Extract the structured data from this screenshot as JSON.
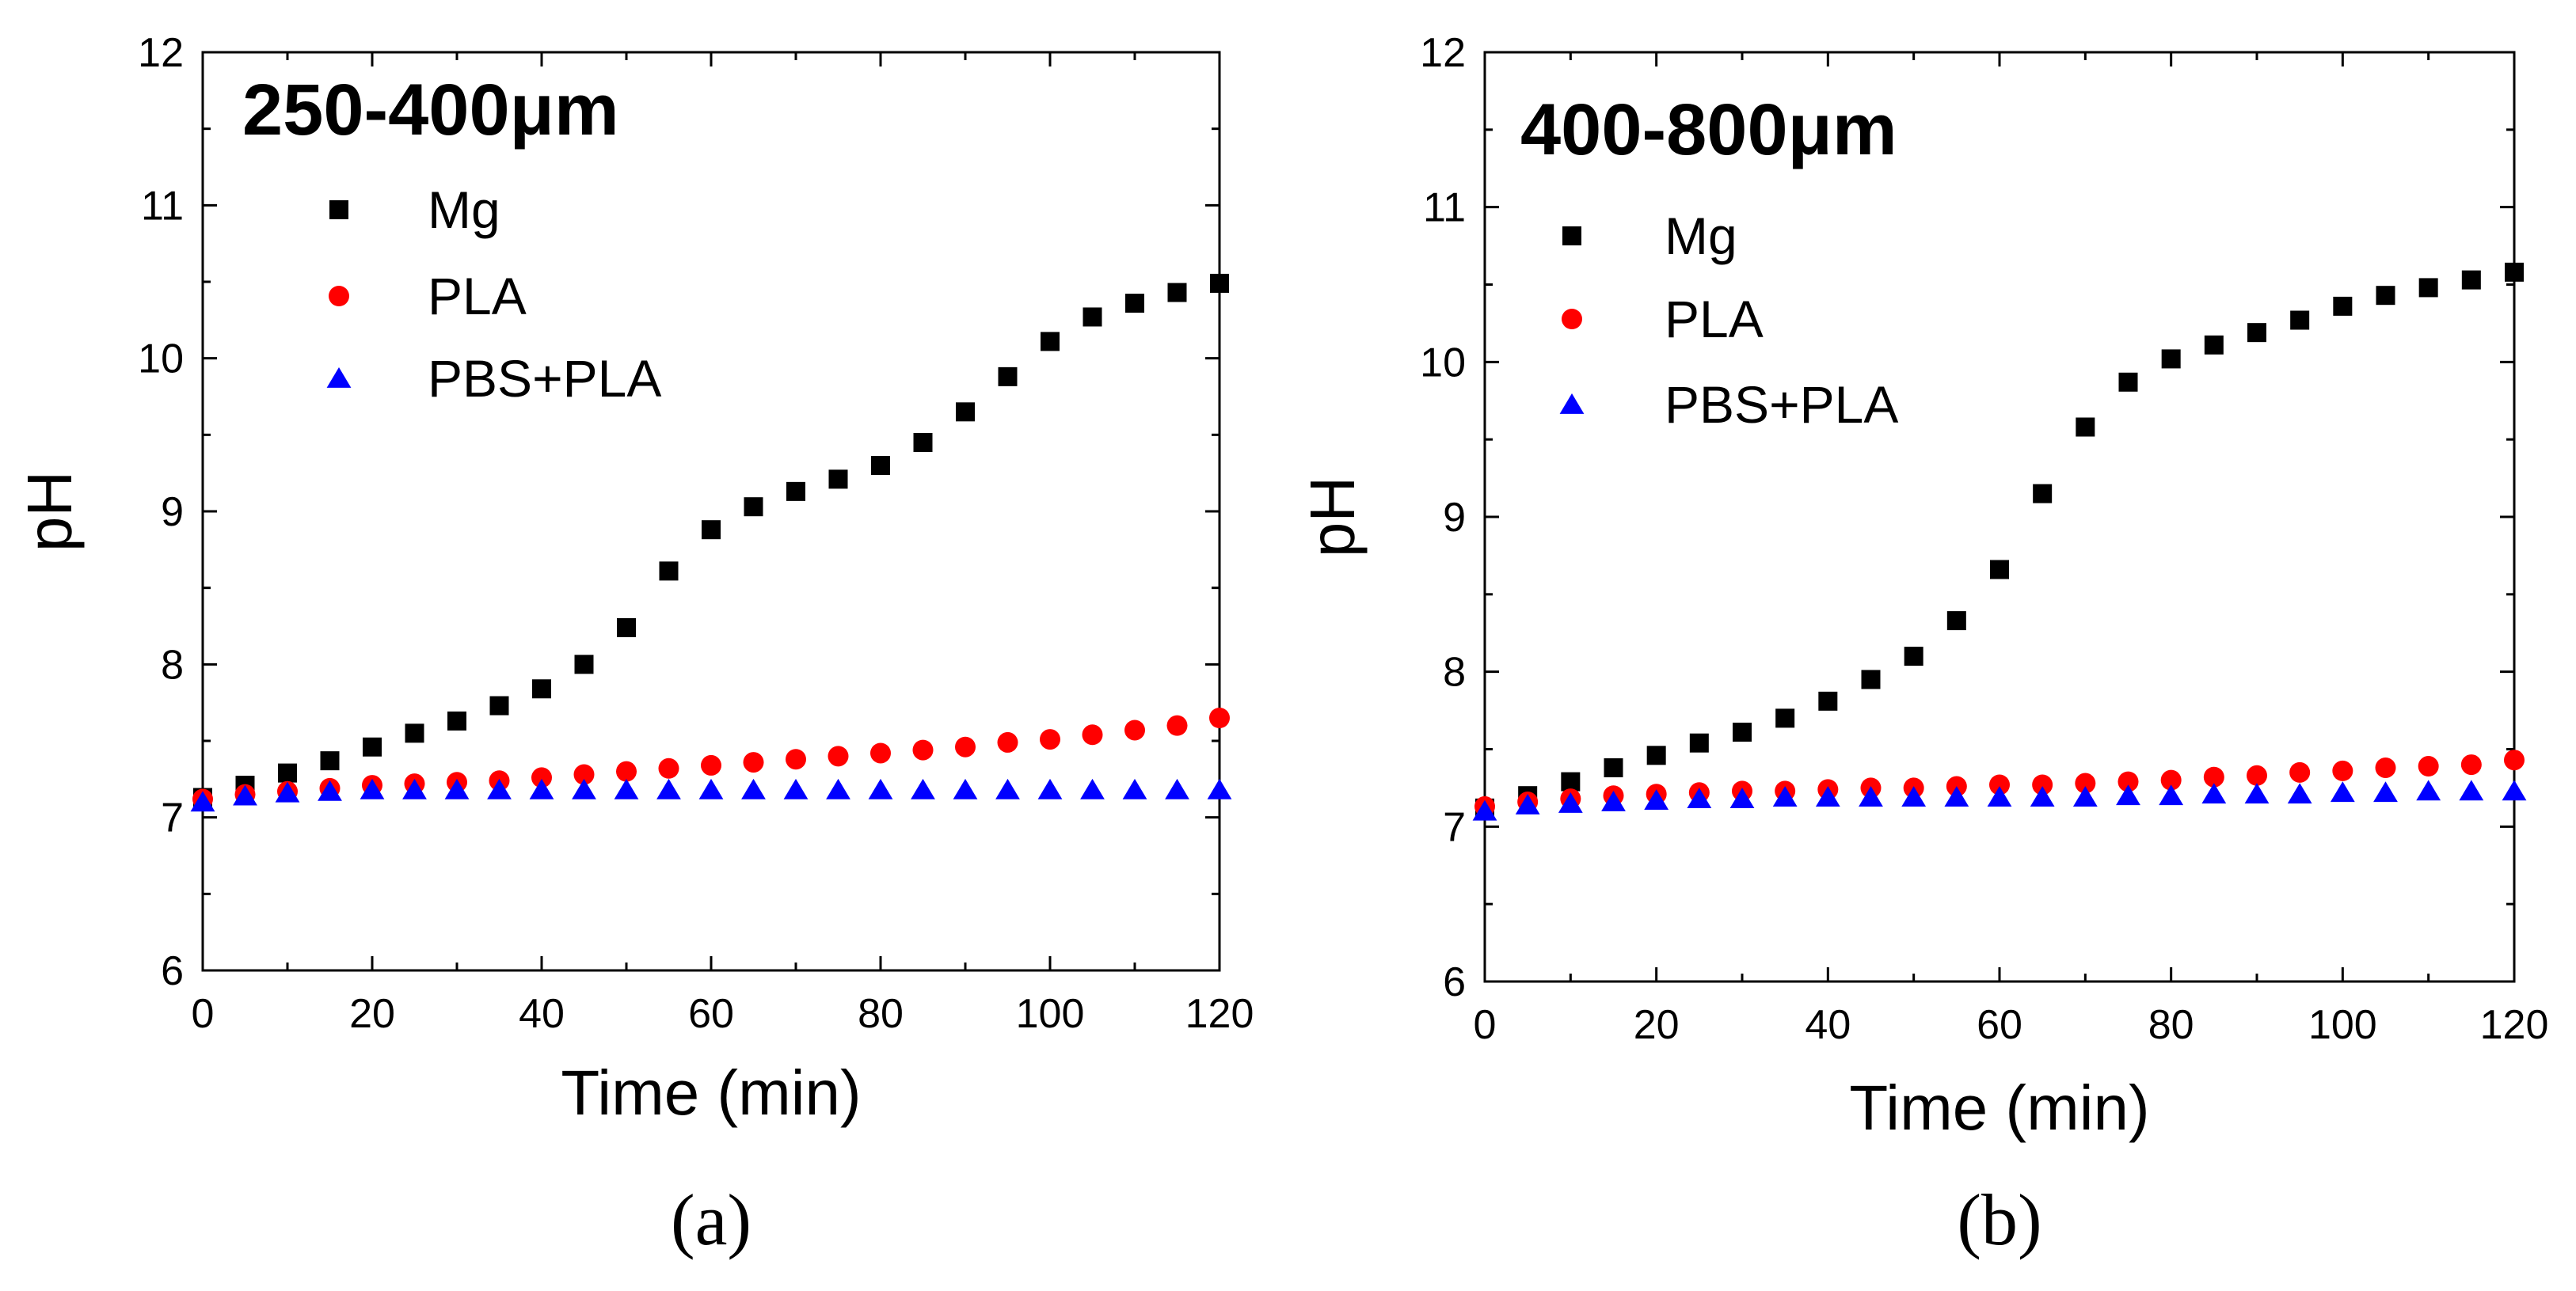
{
  "chart_data": [
    {
      "type": "scatter",
      "panel_label": "(a)",
      "title": "250-400μm",
      "xlabel": "Time (min)",
      "ylabel": "pH",
      "xlim": [
        0,
        120
      ],
      "ylim": [
        6,
        12
      ],
      "xticks": [
        0,
        20,
        40,
        60,
        80,
        100,
        120
      ],
      "yticks": [
        6,
        7,
        8,
        9,
        10,
        11,
        12
      ],
      "legend_position": "top-left",
      "x": [
        0,
        5,
        10,
        15,
        20,
        25,
        30,
        35,
        40,
        45,
        50,
        55,
        60,
        65,
        70,
        75,
        80,
        85,
        90,
        95,
        100,
        105,
        110,
        115,
        120
      ],
      "series": [
        {
          "name": "Mg",
          "marker": "square",
          "color": "#000000",
          "values": [
            7.13,
            7.21,
            7.29,
            7.37,
            7.46,
            7.55,
            7.63,
            7.73,
            7.84,
            8.0,
            8.24,
            8.61,
            8.88,
            9.03,
            9.13,
            9.21,
            9.3,
            9.45,
            9.65,
            9.88,
            10.11,
            10.27,
            10.36,
            10.43,
            10.49
          ]
        },
        {
          "name": "PLA",
          "marker": "circle",
          "color": "#ff0000",
          "values": [
            7.12,
            7.15,
            7.17,
            7.19,
            7.21,
            7.22,
            7.23,
            7.24,
            7.26,
            7.28,
            7.3,
            7.32,
            7.34,
            7.36,
            7.38,
            7.4,
            7.42,
            7.44,
            7.46,
            7.49,
            7.51,
            7.54,
            7.57,
            7.6,
            7.65
          ]
        },
        {
          "name": "PBS+PLA",
          "marker": "triangle",
          "color": "#0000ff",
          "values": [
            7.1,
            7.14,
            7.16,
            7.17,
            7.18,
            7.18,
            7.18,
            7.18,
            7.18,
            7.18,
            7.18,
            7.18,
            7.18,
            7.18,
            7.18,
            7.18,
            7.18,
            7.18,
            7.18,
            7.18,
            7.18,
            7.18,
            7.18,
            7.18,
            7.18
          ]
        }
      ]
    },
    {
      "type": "scatter",
      "panel_label": "(b)",
      "title": "400-800μm",
      "xlabel": "Time (min)",
      "ylabel": "pH",
      "xlim": [
        0,
        120
      ],
      "ylim": [
        6,
        12
      ],
      "xticks": [
        0,
        20,
        40,
        60,
        80,
        100,
        120
      ],
      "yticks": [
        6,
        7,
        8,
        9,
        10,
        11,
        12
      ],
      "legend_position": "top-left",
      "x": [
        0,
        5,
        10,
        15,
        20,
        25,
        30,
        35,
        40,
        45,
        50,
        55,
        60,
        65,
        70,
        75,
        80,
        85,
        90,
        95,
        100,
        105,
        110,
        115,
        120
      ],
      "series": [
        {
          "name": "Mg",
          "marker": "square",
          "color": "#000000",
          "values": [
            7.12,
            7.2,
            7.29,
            7.38,
            7.46,
            7.54,
            7.61,
            7.7,
            7.81,
            7.95,
            8.1,
            8.33,
            8.66,
            9.15,
            9.58,
            9.87,
            10.02,
            10.11,
            10.19,
            10.27,
            10.36,
            10.43,
            10.48,
            10.53,
            10.58
          ]
        },
        {
          "name": "PLA",
          "marker": "circle",
          "color": "#ff0000",
          "values": [
            7.13,
            7.16,
            7.18,
            7.2,
            7.21,
            7.22,
            7.23,
            7.23,
            7.24,
            7.25,
            7.25,
            7.26,
            7.27,
            7.27,
            7.28,
            7.29,
            7.3,
            7.32,
            7.33,
            7.35,
            7.36,
            7.38,
            7.39,
            7.4,
            7.43
          ]
        },
        {
          "name": "PBS+PLA",
          "marker": "triangle",
          "color": "#0000ff",
          "values": [
            7.1,
            7.14,
            7.15,
            7.16,
            7.17,
            7.18,
            7.18,
            7.19,
            7.19,
            7.19,
            7.19,
            7.19,
            7.19,
            7.19,
            7.19,
            7.2,
            7.2,
            7.21,
            7.21,
            7.21,
            7.22,
            7.22,
            7.23,
            7.23,
            7.23
          ]
        }
      ]
    }
  ]
}
